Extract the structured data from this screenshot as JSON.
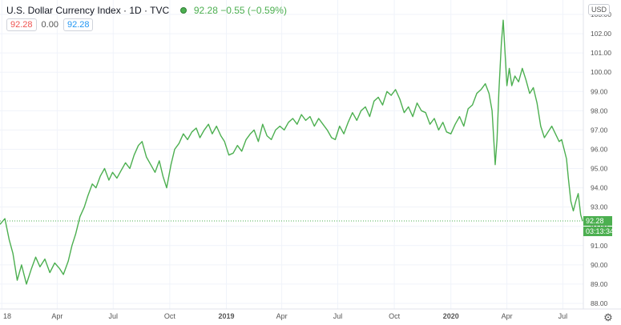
{
  "legend": {
    "title": "U.S. Dollar Currency Index · 1D · TVC",
    "last": "92.28",
    "change": "−0.55 (−0.59%)",
    "box_open": "92.28",
    "box_mid": "0.00",
    "box_close": "92.28"
  },
  "axis": {
    "currency": "USD"
  },
  "price_tag": {
    "price": "92.28",
    "countdown": "03:13:34"
  },
  "colors": {
    "line": "#4caf50",
    "grid": "#f0f3fa",
    "axis_text": "#555555"
  },
  "chart_data": {
    "type": "line",
    "title": "U.S. Dollar Currency Index",
    "xlabel": "",
    "ylabel": "",
    "ylim": [
      88.0,
      103.0
    ],
    "yticks": [
      88.0,
      89.0,
      90.0,
      91.0,
      92.0,
      93.0,
      94.0,
      95.0,
      96.0,
      97.0,
      98.0,
      99.0,
      100.0,
      101.0,
      102.0,
      103.0
    ],
    "xticks": [
      {
        "label": "18",
        "t": 0
      },
      {
        "label": "Apr",
        "t": 90
      },
      {
        "label": "Jul",
        "t": 181
      },
      {
        "label": "Oct",
        "t": 273
      },
      {
        "label": "2019",
        "t": 365
      },
      {
        "label": "Apr",
        "t": 455
      },
      {
        "label": "Jul",
        "t": 546
      },
      {
        "label": "Oct",
        "t": 638
      },
      {
        "label": "2020",
        "t": 730
      },
      {
        "label": "Apr",
        "t": 821
      },
      {
        "label": "Jul",
        "t": 912
      }
    ],
    "series": [
      {
        "name": "",
        "points": [
          [
            -3,
            92.1
          ],
          [
            5,
            92.4
          ],
          [
            12,
            91.3
          ],
          [
            18,
            90.6
          ],
          [
            25,
            89.2
          ],
          [
            32,
            90.0
          ],
          [
            40,
            89.0
          ],
          [
            48,
            89.8
          ],
          [
            55,
            90.4
          ],
          [
            62,
            89.9
          ],
          [
            70,
            90.3
          ],
          [
            78,
            89.6
          ],
          [
            86,
            90.1
          ],
          [
            94,
            89.8
          ],
          [
            100,
            89.5
          ],
          [
            108,
            90.2
          ],
          [
            114,
            91.0
          ],
          [
            120,
            91.6
          ],
          [
            127,
            92.5
          ],
          [
            134,
            93.0
          ],
          [
            140,
            93.6
          ],
          [
            147,
            94.2
          ],
          [
            153,
            94.0
          ],
          [
            160,
            94.6
          ],
          [
            167,
            95.0
          ],
          [
            174,
            94.4
          ],
          [
            180,
            94.8
          ],
          [
            187,
            94.5
          ],
          [
            194,
            94.9
          ],
          [
            201,
            95.3
          ],
          [
            208,
            95.0
          ],
          [
            215,
            95.7
          ],
          [
            222,
            96.2
          ],
          [
            228,
            96.4
          ],
          [
            235,
            95.6
          ],
          [
            242,
            95.2
          ],
          [
            249,
            94.8
          ],
          [
            256,
            95.4
          ],
          [
            262,
            94.6
          ],
          [
            268,
            94.0
          ],
          [
            275,
            95.2
          ],
          [
            281,
            96.0
          ],
          [
            288,
            96.3
          ],
          [
            295,
            96.8
          ],
          [
            302,
            96.5
          ],
          [
            309,
            96.9
          ],
          [
            316,
            97.1
          ],
          [
            322,
            96.6
          ],
          [
            329,
            97.0
          ],
          [
            336,
            97.3
          ],
          [
            342,
            96.8
          ],
          [
            349,
            97.2
          ],
          [
            356,
            96.7
          ],
          [
            362,
            96.4
          ],
          [
            369,
            95.7
          ],
          [
            376,
            95.8
          ],
          [
            383,
            96.2
          ],
          [
            390,
            95.9
          ],
          [
            397,
            96.5
          ],
          [
            404,
            96.8
          ],
          [
            410,
            97.0
          ],
          [
            417,
            96.4
          ],
          [
            424,
            97.3
          ],
          [
            431,
            96.7
          ],
          [
            438,
            96.5
          ],
          [
            445,
            97.0
          ],
          [
            452,
            97.2
          ],
          [
            459,
            97.0
          ],
          [
            466,
            97.4
          ],
          [
            473,
            97.6
          ],
          [
            480,
            97.3
          ],
          [
            487,
            97.8
          ],
          [
            494,
            97.5
          ],
          [
            501,
            97.7
          ],
          [
            508,
            97.2
          ],
          [
            515,
            97.6
          ],
          [
            522,
            97.3
          ],
          [
            529,
            97.0
          ],
          [
            536,
            96.6
          ],
          [
            542,
            96.5
          ],
          [
            549,
            97.2
          ],
          [
            556,
            96.8
          ],
          [
            563,
            97.4
          ],
          [
            570,
            97.9
          ],
          [
            577,
            97.5
          ],
          [
            584,
            98.0
          ],
          [
            591,
            98.2
          ],
          [
            598,
            97.7
          ],
          [
            605,
            98.5
          ],
          [
            612,
            98.7
          ],
          [
            619,
            98.3
          ],
          [
            626,
            99.0
          ],
          [
            633,
            98.8
          ],
          [
            640,
            99.1
          ],
          [
            647,
            98.6
          ],
          [
            654,
            97.9
          ],
          [
            661,
            98.2
          ],
          [
            668,
            97.7
          ],
          [
            675,
            98.4
          ],
          [
            682,
            98.0
          ],
          [
            689,
            97.9
          ],
          [
            696,
            97.3
          ],
          [
            703,
            97.6
          ],
          [
            710,
            97.0
          ],
          [
            717,
            97.4
          ],
          [
            723,
            96.9
          ],
          [
            730,
            96.8
          ],
          [
            737,
            97.3
          ],
          [
            744,
            97.7
          ],
          [
            751,
            97.2
          ],
          [
            758,
            98.1
          ],
          [
            765,
            98.3
          ],
          [
            772,
            98.9
          ],
          [
            779,
            99.1
          ],
          [
            786,
            99.4
          ],
          [
            792,
            98.9
          ],
          [
            797,
            98.0
          ],
          [
            800,
            96.3
          ],
          [
            802,
            95.2
          ],
          [
            805,
            96.5
          ],
          [
            808,
            99.0
          ],
          [
            812,
            101.5
          ],
          [
            815,
            102.7
          ],
          [
            818,
            101.0
          ],
          [
            821,
            99.3
          ],
          [
            825,
            100.2
          ],
          [
            829,
            99.3
          ],
          [
            834,
            99.8
          ],
          [
            840,
            99.5
          ],
          [
            846,
            100.2
          ],
          [
            852,
            99.6
          ],
          [
            858,
            98.9
          ],
          [
            864,
            99.2
          ],
          [
            870,
            98.4
          ],
          [
            876,
            97.2
          ],
          [
            882,
            96.6
          ],
          [
            888,
            96.9
          ],
          [
            894,
            97.2
          ],
          [
            900,
            96.8
          ],
          [
            906,
            96.4
          ],
          [
            910,
            96.5
          ],
          [
            914,
            96.0
          ],
          [
            918,
            95.5
          ],
          [
            921,
            94.5
          ],
          [
            925,
            93.3
          ],
          [
            929,
            92.8
          ],
          [
            933,
            93.3
          ],
          [
            937,
            93.7
          ],
          [
            941,
            92.6
          ],
          [
            944,
            92.28
          ]
        ]
      }
    ],
    "last_value": 92.28,
    "grid": true,
    "legend": "top-left"
  }
}
